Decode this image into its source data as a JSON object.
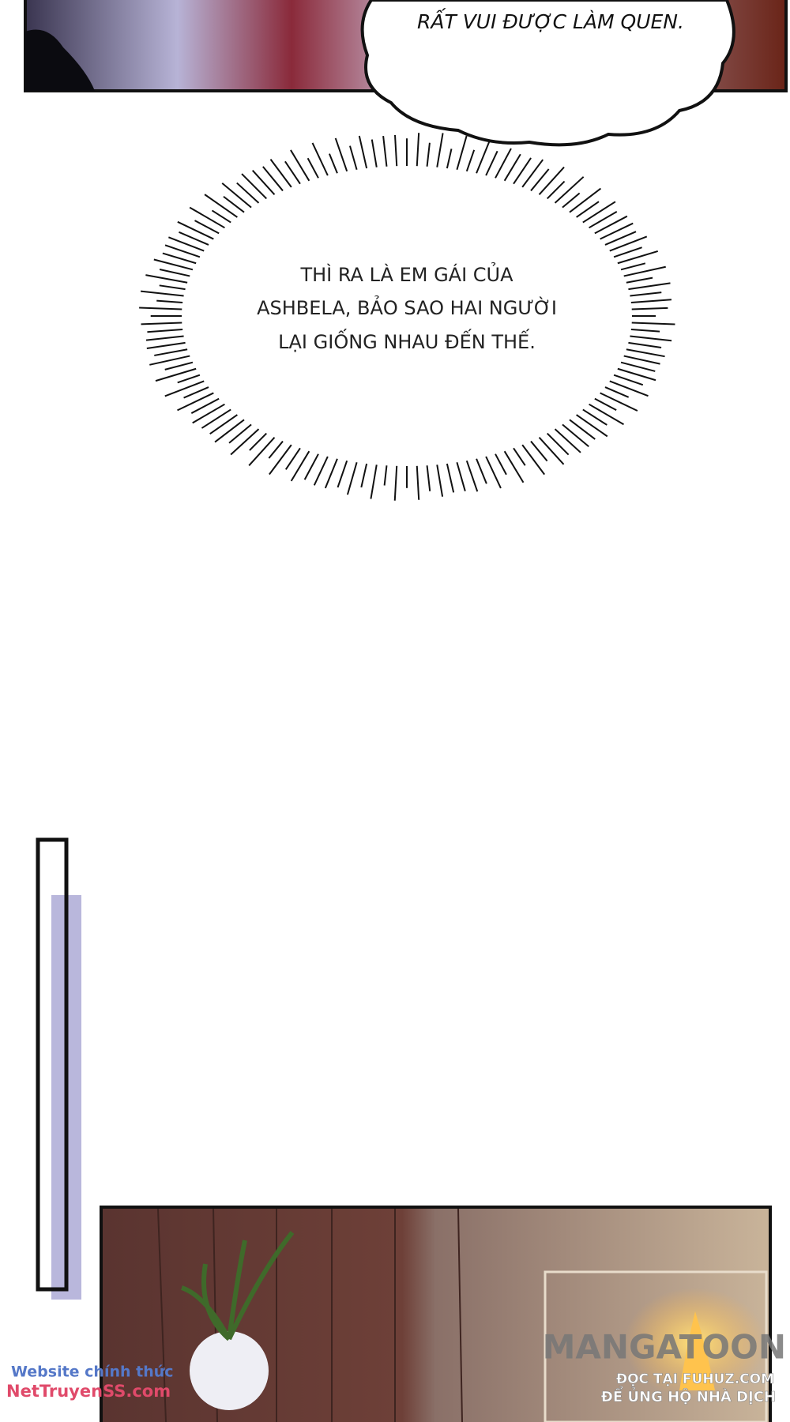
{
  "top_bubble": {
    "text": "RẤT VUI ĐƯỢC LÀM QUEN."
  },
  "thought_bubble": {
    "lines": [
      "THÌ RA LÀ EM GÁI CỦA",
      "ASHBELA, BẢO SAO HAI NGƯỜI",
      "LẠI GIỐNG NHAU ĐẾN THẾ."
    ]
  },
  "watermarks": {
    "site_label": "Website chính thức",
    "site_url": "NetTruyenSS.com",
    "brand": "MANGATOON",
    "read_at": "ĐỌC TẠI FUHUZ.COM",
    "support": "ĐỂ ỦNG HỘ NHÀ DỊCH"
  }
}
